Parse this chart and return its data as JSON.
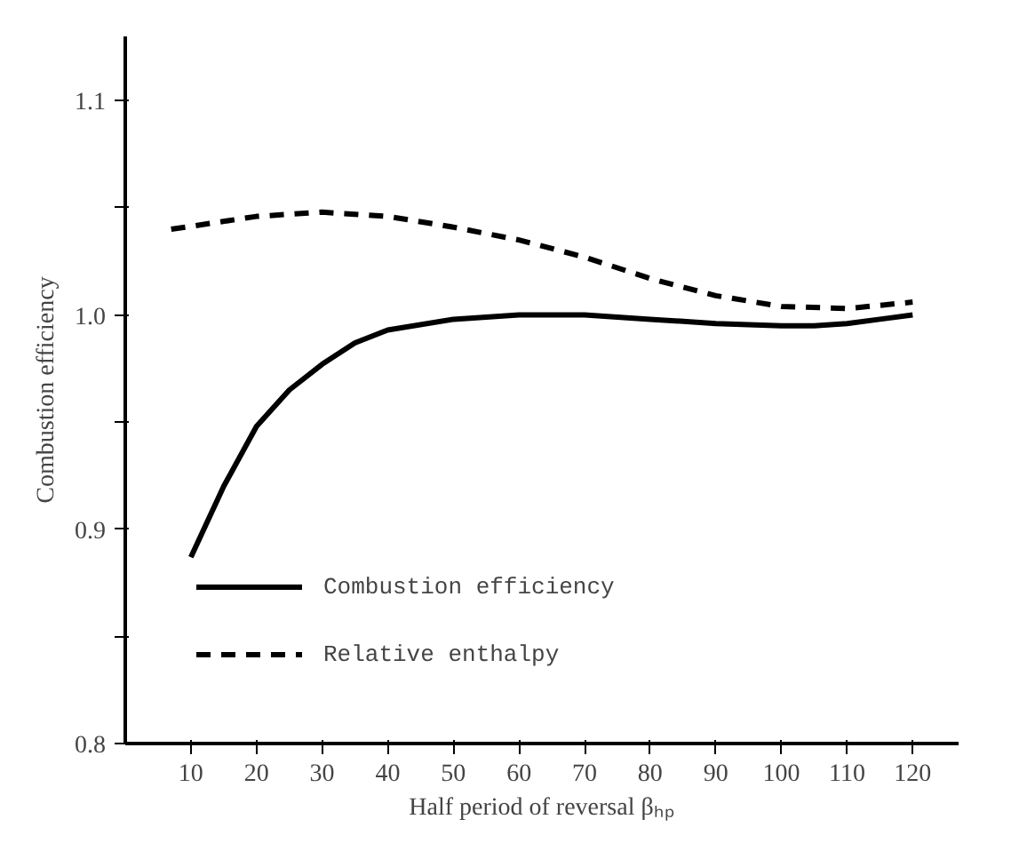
{
  "chart_data": {
    "type": "line",
    "xlabel": "Half period of reversal βₕₚ",
    "ylabel": "Combustion efficiency",
    "xlim": [
      0,
      127
    ],
    "ylim": [
      0.8,
      1.13
    ],
    "xticks": [
      10,
      20,
      30,
      40,
      50,
      60,
      70,
      80,
      90,
      100,
      110,
      120
    ],
    "yticks": [
      0.8,
      {
        "value": 0.85,
        "label": null
      },
      0.9,
      {
        "value": 0.95,
        "label": null
      },
      {
        "value": 1.0,
        "label": "1.0"
      },
      {
        "value": 1.05,
        "label": null
      },
      1.1
    ],
    "grid": false,
    "legend": "bottom left",
    "series": [
      {
        "name": "Combustion efficiency",
        "color": "#000000",
        "line_style": "solid",
        "x": [
          10,
          15,
          20,
          25,
          30,
          35,
          40,
          50,
          60,
          70,
          80,
          90,
          100,
          105,
          110,
          115,
          120
        ],
        "values": [
          0.887,
          0.92,
          0.948,
          0.965,
          0.977,
          0.987,
          0.993,
          0.998,
          1.0,
          1.0,
          0.998,
          0.996,
          0.995,
          0.995,
          0.996,
          0.998,
          1.0
        ]
      },
      {
        "name": "Relative enthalpy",
        "color": "#000000",
        "line_style": "dashed",
        "x": [
          7,
          20,
          30,
          40,
          50,
          60,
          70,
          80,
          90,
          100,
          110,
          120
        ],
        "values": [
          1.04,
          1.046,
          1.048,
          1.046,
          1.041,
          1.035,
          1.027,
          1.017,
          1.009,
          1.004,
          1.003,
          1.006
        ]
      }
    ]
  }
}
